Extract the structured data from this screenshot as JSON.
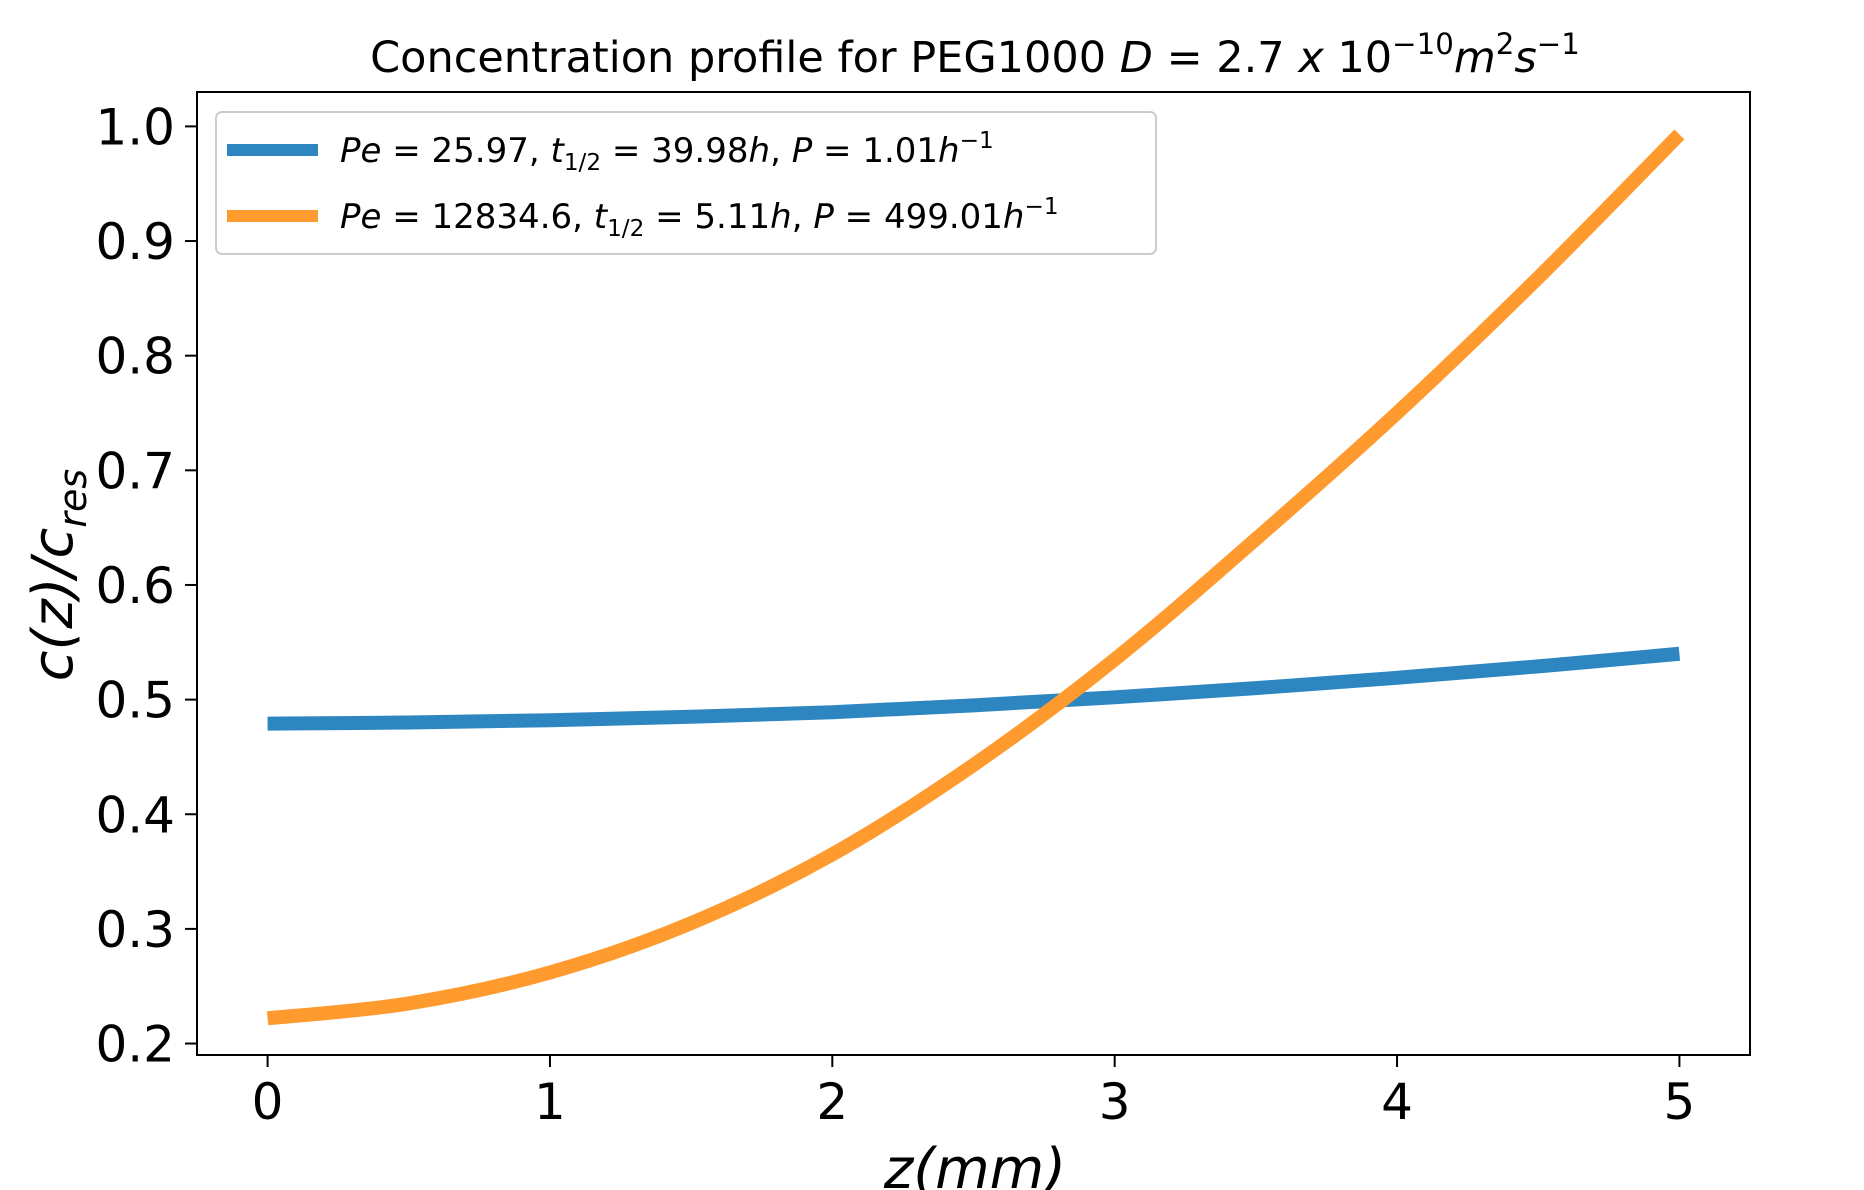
{
  "chart_data": {
    "type": "line",
    "title": "Concentration profile for PEG1000 D = 2.7 x 10^-10 m^2 s^-1",
    "title_parts": {
      "lead": "Concentration profile for PEG1000 ",
      "var": "D",
      "eq": " = 2.7 ",
      "times": "x",
      "base": " 10",
      "exp1": "−10",
      "m": "m",
      "exp2": "2",
      "s": "s",
      "exp3": "−1"
    },
    "xlabel": "z(mm)",
    "ylabel": "c(z)/c_res",
    "ylabel_parts": {
      "main": "c(z)/c",
      "sub": "res"
    },
    "xlim": [
      -0.25,
      5.25
    ],
    "ylim": [
      0.19,
      1.03
    ],
    "xticks": [
      "0",
      "1",
      "2",
      "3",
      "4",
      "5"
    ],
    "yticks": [
      "0.2",
      "0.3",
      "0.4",
      "0.5",
      "0.6",
      "0.7",
      "0.8",
      "0.9",
      "1.0"
    ],
    "grid": false,
    "legend_position": "upper-left",
    "x": [
      0,
      0.5,
      1,
      1.5,
      2,
      2.5,
      3,
      3.5,
      4,
      4.5,
      5
    ],
    "series": [
      {
        "name": "Pe = 25.97, t_1/2 = 39.98h, P = 1.01h^-1",
        "legend": {
          "pe": "25.97",
          "t": "39.98",
          "p": "1.01"
        },
        "color": "#2e86c1",
        "values": [
          0.479,
          0.48,
          0.482,
          0.485,
          0.489,
          0.495,
          0.502,
          0.51,
          0.519,
          0.529,
          0.54
        ]
      },
      {
        "name": "Pe = 12834.6, t_1/2 = 5.11h, P = 499.01h^-1",
        "legend": {
          "pe": "12834.6",
          "t": "5.11",
          "p": "499.01"
        },
        "color": "#ff9a2e",
        "values": [
          0.222,
          0.235,
          0.262,
          0.305,
          0.365,
          0.443,
          0.535,
          0.64,
          0.75,
          0.868,
          0.993
        ]
      }
    ]
  }
}
